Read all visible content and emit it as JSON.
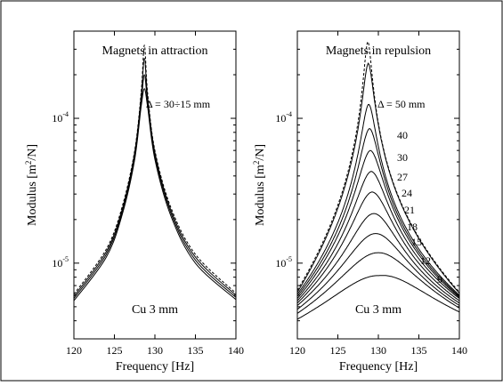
{
  "chart_data": [
    {
      "type": "line",
      "title": "Magnets in attraction",
      "annotation": "Δ = 30÷15 mm",
      "note": "Cu 3 mm",
      "xlabel": "Frequency  [Hz]",
      "ylabel": "Modulus  [m²/N]",
      "xlim": [
        120,
        140
      ],
      "ylim": [
        3e-06,
        0.0004
      ],
      "yscale": "log",
      "xticks": [
        120,
        125,
        130,
        135,
        140
      ],
      "yticks": [
        {
          "value": 1e-05,
          "base": "10",
          "exp": "-5"
        },
        {
          "value": 0.0001,
          "base": "10",
          "exp": "-4"
        }
      ],
      "grid": false,
      "series": [
        {
          "values": [
            [
              120,
              6.1e-06
            ],
            [
              124,
              1.25e-05
            ],
            [
              126,
              2.5e-05
            ],
            [
              127.5,
              6e-05
            ],
            [
              128.3,
              0.00015
            ],
            [
              128.7,
              0.00032
            ],
            [
              129.1,
              0.00015
            ],
            [
              130,
              6e-05
            ],
            [
              132,
              2.4e-05
            ],
            [
              135,
              1.15e-05
            ],
            [
              140,
              6.2e-06
            ]
          ],
          "dashed": true
        },
        {
          "values": [
            [
              120,
              5.9e-06
            ],
            [
              124,
              1.2e-05
            ],
            [
              126,
              2.4e-05
            ],
            [
              127.5,
              5.8e-05
            ],
            [
              128.3,
              0.00014
            ],
            [
              128.7,
              0.00026
            ],
            [
              129.1,
              0.00014
            ],
            [
              130,
              5.8e-05
            ],
            [
              132,
              2.3e-05
            ],
            [
              135,
              1.1e-05
            ],
            [
              140,
              6e-06
            ]
          ]
        },
        {
          "values": [
            [
              120,
              5.7e-06
            ],
            [
              124,
              1.15e-05
            ],
            [
              126,
              2.3e-05
            ],
            [
              127.5,
              5.5e-05
            ],
            [
              128.3,
              0.00013
            ],
            [
              128.7,
              0.0002
            ],
            [
              129.1,
              0.00013
            ],
            [
              130,
              5.5e-05
            ],
            [
              132,
              2.2e-05
            ],
            [
              135,
              1.05e-05
            ],
            [
              140,
              5.8e-06
            ]
          ]
        },
        {
          "values": [
            [
              120,
              5.5e-06
            ],
            [
              124,
              1.1e-05
            ],
            [
              126,
              2.2e-05
            ],
            [
              127.5,
              5.2e-05
            ],
            [
              128.3,
              0.00012
            ],
            [
              128.7,
              0.00016
            ],
            [
              129.1,
              0.00012
            ],
            [
              130,
              5.2e-05
            ],
            [
              132,
              2.1e-05
            ],
            [
              135,
              1e-05
            ],
            [
              140,
              5.6e-06
            ]
          ]
        }
      ]
    },
    {
      "type": "line",
      "title": "Magnets in repulsion",
      "annotation": "Δ = 50  mm",
      "note": "Cu 3 mm",
      "xlabel": "Frequency  [Hz]",
      "ylabel": "Modulus  [m²/N]",
      "xlim": [
        120,
        140
      ],
      "ylim": [
        3e-06,
        0.0004
      ],
      "yscale": "log",
      "xticks": [
        120,
        125,
        130,
        135,
        140
      ],
      "yticks": [
        {
          "value": 1e-05,
          "base": "10",
          "exp": "-5"
        },
        {
          "value": 0.0001,
          "base": "10",
          "exp": "-4"
        }
      ],
      "grid": false,
      "curve_labels": [
        "40",
        "30",
        "27",
        "24",
        "21",
        "18",
        "15",
        "12",
        "9"
      ],
      "series": [
        {
          "peak_x": 128.7,
          "peak_y": 0.00034,
          "width": 0.4,
          "edge_left": 6.5e-06,
          "edge_right": 6.3e-06,
          "dashed": true
        },
        {
          "peak_x": 128.75,
          "peak_y": 0.00024,
          "width": 0.55,
          "edge_left": 6.3e-06,
          "edge_right": 6.2e-06
        },
        {
          "peak_x": 128.8,
          "peak_y": 0.000125,
          "width": 0.75,
          "edge_left": 6.1e-06,
          "edge_right": 6e-06
        },
        {
          "peak_x": 128.9,
          "peak_y": 8.5e-05,
          "width": 1.0,
          "edge_left": 5.9e-06,
          "edge_right": 5.9e-06
        },
        {
          "peak_x": 129.0,
          "peak_y": 6e-05,
          "width": 1.3,
          "edge_left": 5.7e-06,
          "edge_right": 5.8e-06
        },
        {
          "peak_x": 129.1,
          "peak_y": 4.3e-05,
          "width": 1.6,
          "edge_left": 5.5e-06,
          "edge_right": 5.7e-06
        },
        {
          "peak_x": 129.2,
          "peak_y": 3.1e-05,
          "width": 2.0,
          "edge_left": 5.3e-06,
          "edge_right": 5.5e-06
        },
        {
          "peak_x": 129.4,
          "peak_y": 2.2e-05,
          "width": 2.5,
          "edge_left": 5.1e-06,
          "edge_right": 5.3e-06
        },
        {
          "peak_x": 129.6,
          "peak_y": 1.6e-05,
          "width": 3.2,
          "edge_left": 4.8e-06,
          "edge_right": 5.1e-06
        },
        {
          "peak_x": 129.9,
          "peak_y": 1.18e-05,
          "width": 4.2,
          "edge_left": 4.5e-06,
          "edge_right": 4.9e-06
        },
        {
          "peak_x": 130.1,
          "peak_y": 8.2e-06,
          "width": 5.5,
          "edge_left": 4.1e-06,
          "edge_right": 4.6e-06
        }
      ]
    }
  ]
}
